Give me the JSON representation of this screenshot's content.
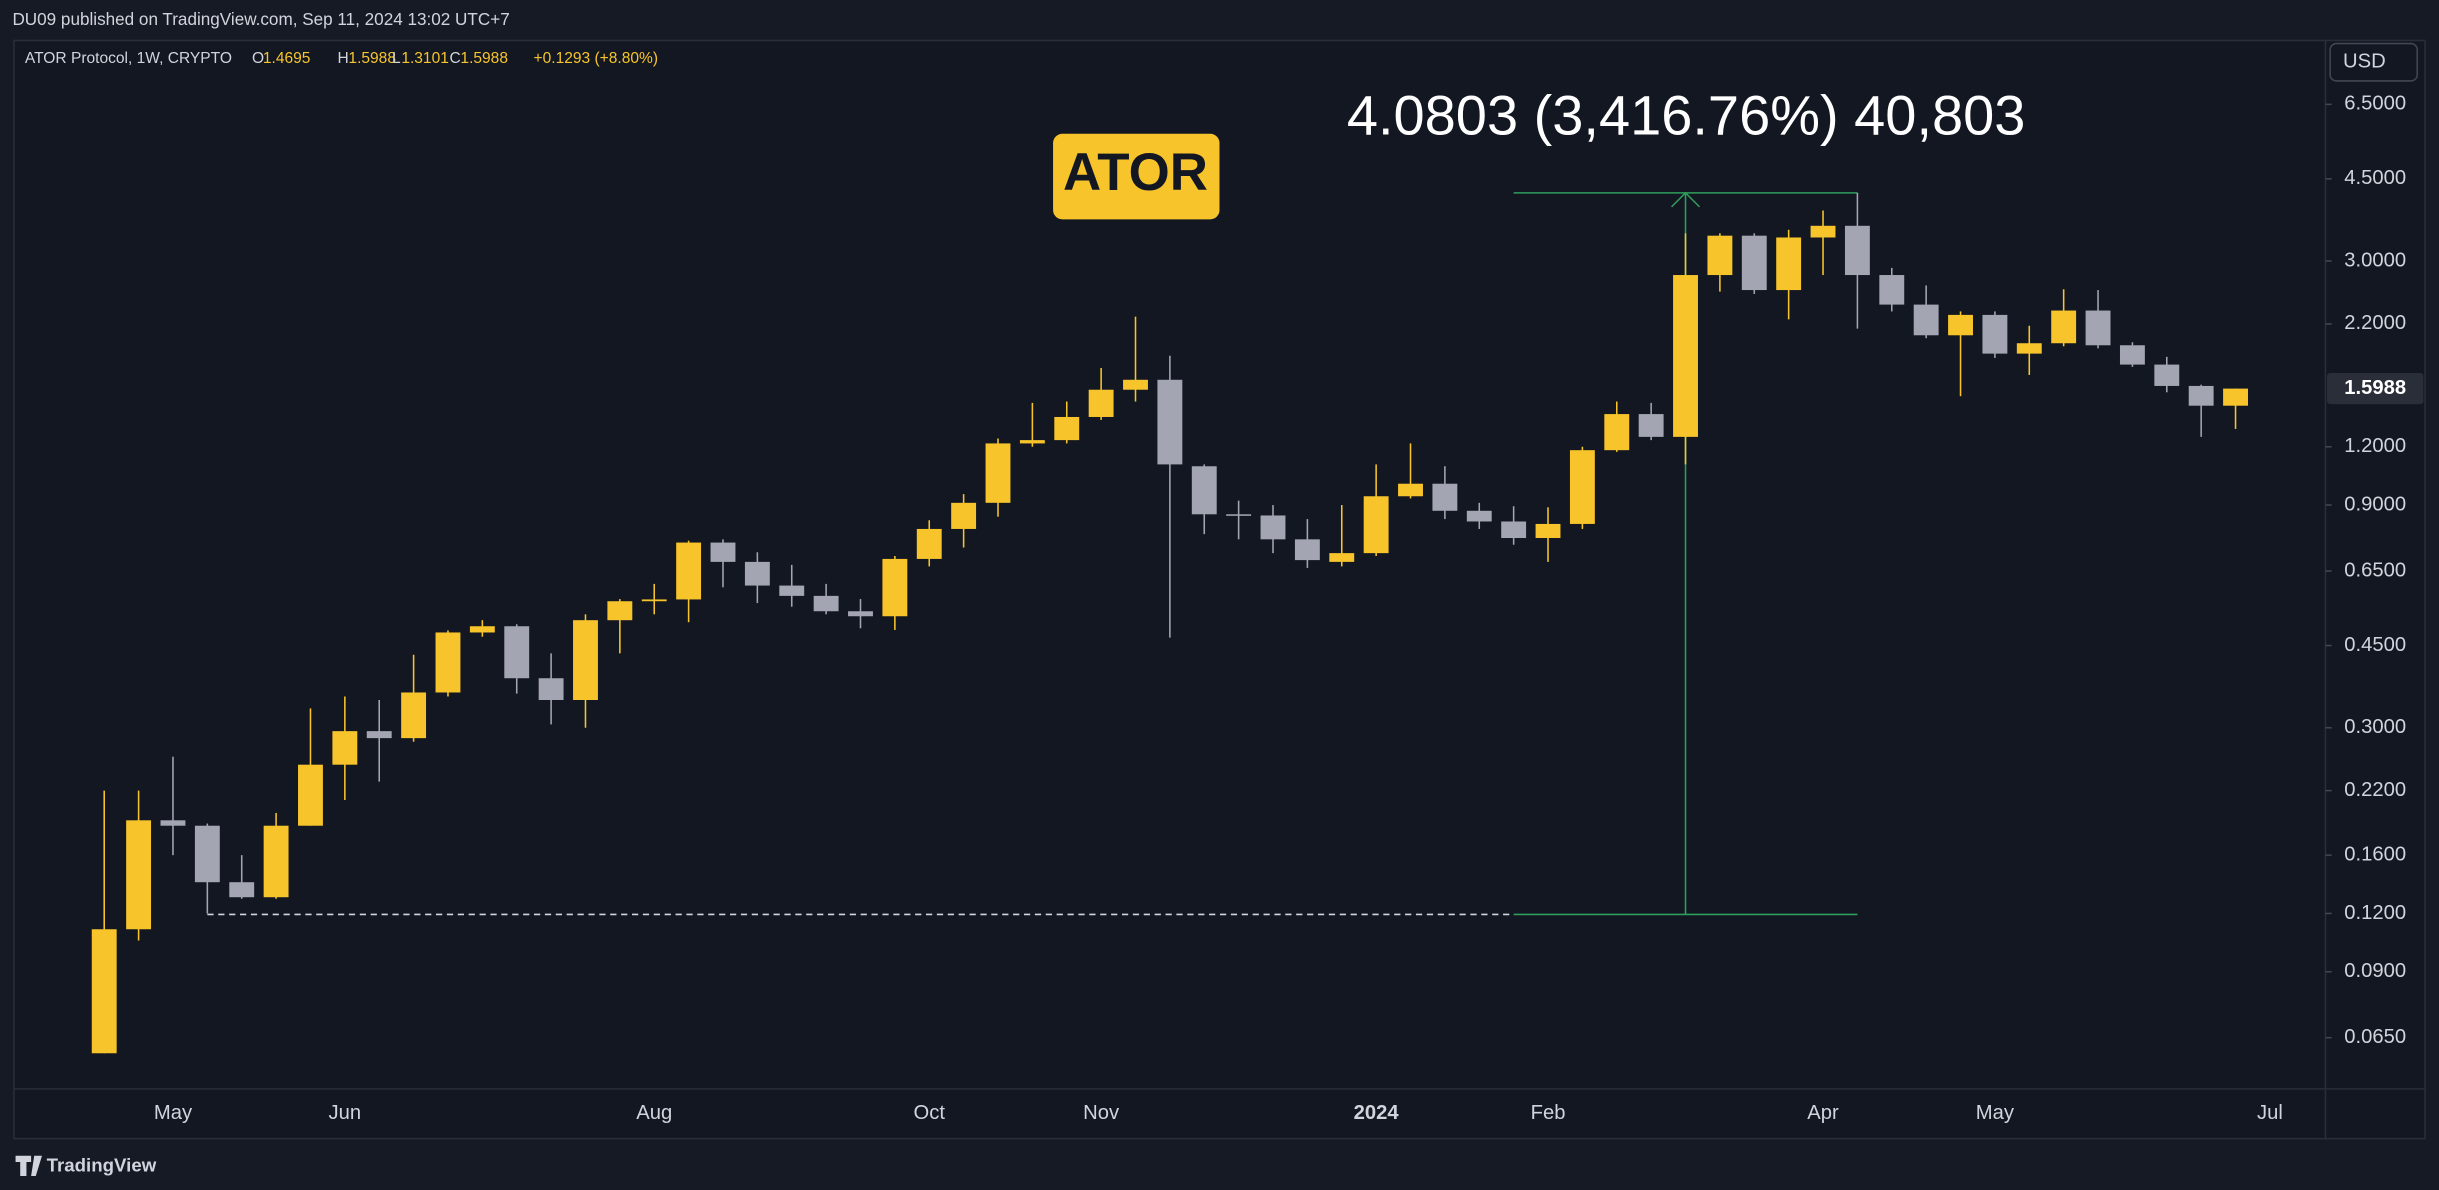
{
  "page": {
    "published": "DU09 published on TradingView.com, Sep 11, 2024 13:02 UTC+7",
    "symbol": "ATOR Protocol, 1W, CRYPTO",
    "ohlc_letters": [
      "O",
      "H",
      "L",
      "C"
    ],
    "change": "+0.1293 (+8.80%)",
    "currency": "USD",
    "badge": "ATOR",
    "footer": "TradingView"
  },
  "chart_data": {
    "type": "candlestick",
    "log_scale": true,
    "grid": false,
    "up_color": "#f7c52b",
    "down_color": "#a3a6b2",
    "categories": [
      null,
      null,
      "May",
      null,
      null,
      null,
      null,
      "Jun",
      null,
      null,
      null,
      null,
      null,
      null,
      null,
      null,
      "Aug",
      null,
      null,
      null,
      null,
      null,
      null,
      null,
      "Oct",
      null,
      null,
      null,
      null,
      "Nov",
      null,
      null,
      null,
      null,
      null,
      null,
      null,
      "2024",
      null,
      null,
      null,
      null,
      "Feb",
      null,
      null,
      null,
      null,
      null,
      null,
      null,
      "Apr",
      null,
      null,
      null,
      null,
      "May",
      null,
      null,
      null,
      null,
      null,
      null,
      null,
      "Jul"
    ],
    "open": [
      0.0602,
      0.111,
      0.19,
      0.185,
      0.14,
      0.13,
      0.185,
      0.25,
      0.295,
      0.285,
      0.357,
      0.48,
      0.495,
      0.383,
      0.344,
      0.51,
      0.56,
      0.565,
      0.748,
      0.68,
      0.605,
      0.575,
      0.533,
      0.52,
      0.69,
      0.8,
      0.91,
      1.22,
      1.24,
      1.39,
      1.59,
      1.67,
      1.09,
      0.86,
      0.855,
      0.76,
      0.68,
      0.71,
      0.94,
      1.0,
      0.875,
      0.83,
      0.765,
      0.82,
      1.18,
      1.41,
      1.26,
      2.8,
      3.4,
      2.6,
      3.37,
      3.57,
      2.8,
      2.42,
      2.08,
      2.3,
      1.9,
      2.0,
      2.35,
      1.98,
      1.8,
      1.62,
      1.4695,
      null
    ],
    "high": [
      0.22,
      0.22,
      0.26,
      0.187,
      0.16,
      0.197,
      0.33,
      0.35,
      0.344,
      0.43,
      0.485,
      0.51,
      0.5,
      0.433,
      0.525,
      0.566,
      0.61,
      0.755,
      0.76,
      0.713,
      0.67,
      0.61,
      0.566,
      0.7,
      0.835,
      0.95,
      1.25,
      1.49,
      1.5,
      1.77,
      2.28,
      1.88,
      1.1,
      0.92,
      0.9,
      0.84,
      0.9,
      1.1,
      1.22,
      1.09,
      0.91,
      0.895,
      0.89,
      1.2,
      1.5,
      1.49,
      3.44,
      3.44,
      3.44,
      3.5,
      3.85,
      4.2,
      2.9,
      2.66,
      2.34,
      2.34,
      2.18,
      2.61,
      2.6,
      2.01,
      1.87,
      1.63,
      1.5988,
      null
    ],
    "low": [
      0.0602,
      0.105,
      0.16,
      0.12,
      0.129,
      0.129,
      0.185,
      0.21,
      0.23,
      0.28,
      0.35,
      0.47,
      0.355,
      0.305,
      0.3,
      0.433,
      0.525,
      0.505,
      0.6,
      0.555,
      0.545,
      0.525,
      0.49,
      0.486,
      0.665,
      0.73,
      0.85,
      1.2,
      1.22,
      1.37,
      1.5,
      0.468,
      0.78,
      0.76,
      0.71,
      0.66,
      0.665,
      0.7,
      0.93,
      0.84,
      0.8,
      0.74,
      0.68,
      0.8,
      1.17,
      1.24,
      1.1,
      2.58,
      2.55,
      2.25,
      2.8,
      2.15,
      2.34,
      2.05,
      1.54,
      1.86,
      1.71,
      1.97,
      1.95,
      1.78,
      1.57,
      1.26,
      1.3101,
      null
    ],
    "close": [
      0.111,
      0.19,
      0.185,
      0.14,
      0.13,
      0.185,
      0.25,
      0.295,
      0.285,
      0.357,
      0.48,
      0.495,
      0.383,
      0.344,
      0.51,
      0.56,
      0.565,
      0.748,
      0.68,
      0.605,
      0.575,
      0.533,
      0.52,
      0.69,
      0.8,
      0.91,
      1.22,
      1.24,
      1.39,
      1.59,
      1.67,
      1.1,
      0.86,
      0.855,
      0.76,
      0.686,
      0.71,
      0.94,
      1.0,
      0.875,
      0.83,
      0.765,
      0.82,
      1.18,
      1.41,
      1.26,
      2.8,
      3.4,
      2.6,
      3.37,
      3.57,
      2.8,
      2.42,
      2.08,
      2.3,
      1.9,
      2.0,
      2.35,
      1.98,
      1.8,
      1.62,
      1.4695,
      1.5988,
      null
    ],
    "ylim": [
      0.0505,
      8.84
    ],
    "yticks": [
      {
        "value": 6.5,
        "label": "6.5000"
      },
      {
        "value": 4.5,
        "label": "4.5000"
      },
      {
        "value": 3,
        "label": "3.0000"
      },
      {
        "value": 2.2,
        "label": "2.2000"
      },
      {
        "value": 1.2,
        "label": "1.2000"
      },
      {
        "value": 0.9,
        "label": "0.9000"
      },
      {
        "value": 0.65,
        "label": "0.6500"
      },
      {
        "value": 0.45,
        "label": "0.4500"
      },
      {
        "value": 0.3,
        "label": "0.3000"
      },
      {
        "value": 0.22,
        "label": "0.2200"
      },
      {
        "value": 0.16,
        "label": "0.1600"
      },
      {
        "value": 0.12,
        "label": "0.1200"
      },
      {
        "value": 0.09,
        "label": "0.0900"
      },
      {
        "value": 0.065,
        "label": "0.0650"
      }
    ],
    "measure": {
      "from": 0.1194,
      "to": 4.1997,
      "label": "4.0803 (3,416.76%) 40,803",
      "color": "#2e9e5b"
    }
  }
}
